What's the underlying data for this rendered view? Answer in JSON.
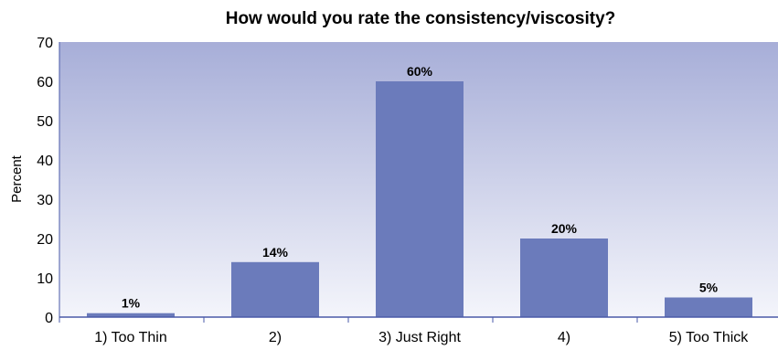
{
  "chart_data": {
    "type": "bar",
    "title": "How would you rate the consistency/viscosity?",
    "ylabel": "Percent",
    "xlabel": "",
    "categories": [
      "1) Too Thin",
      "2)",
      "3) Just Right",
      "4)",
      "5) Too Thick"
    ],
    "values": [
      1,
      14,
      60,
      20,
      5
    ],
    "data_labels": [
      "1%",
      "14%",
      "60%",
      "20%",
      "5%"
    ],
    "yticks": [
      "0",
      "10",
      "20",
      "30",
      "40",
      "50",
      "60",
      "70"
    ],
    "ylim": [
      0,
      70
    ],
    "grid": false,
    "colors": {
      "bar": "#6b7bbb",
      "bg_top": "#a7aed8",
      "bg_bottom": "#f4f5fb",
      "axis": "#4a5aa8"
    }
  }
}
